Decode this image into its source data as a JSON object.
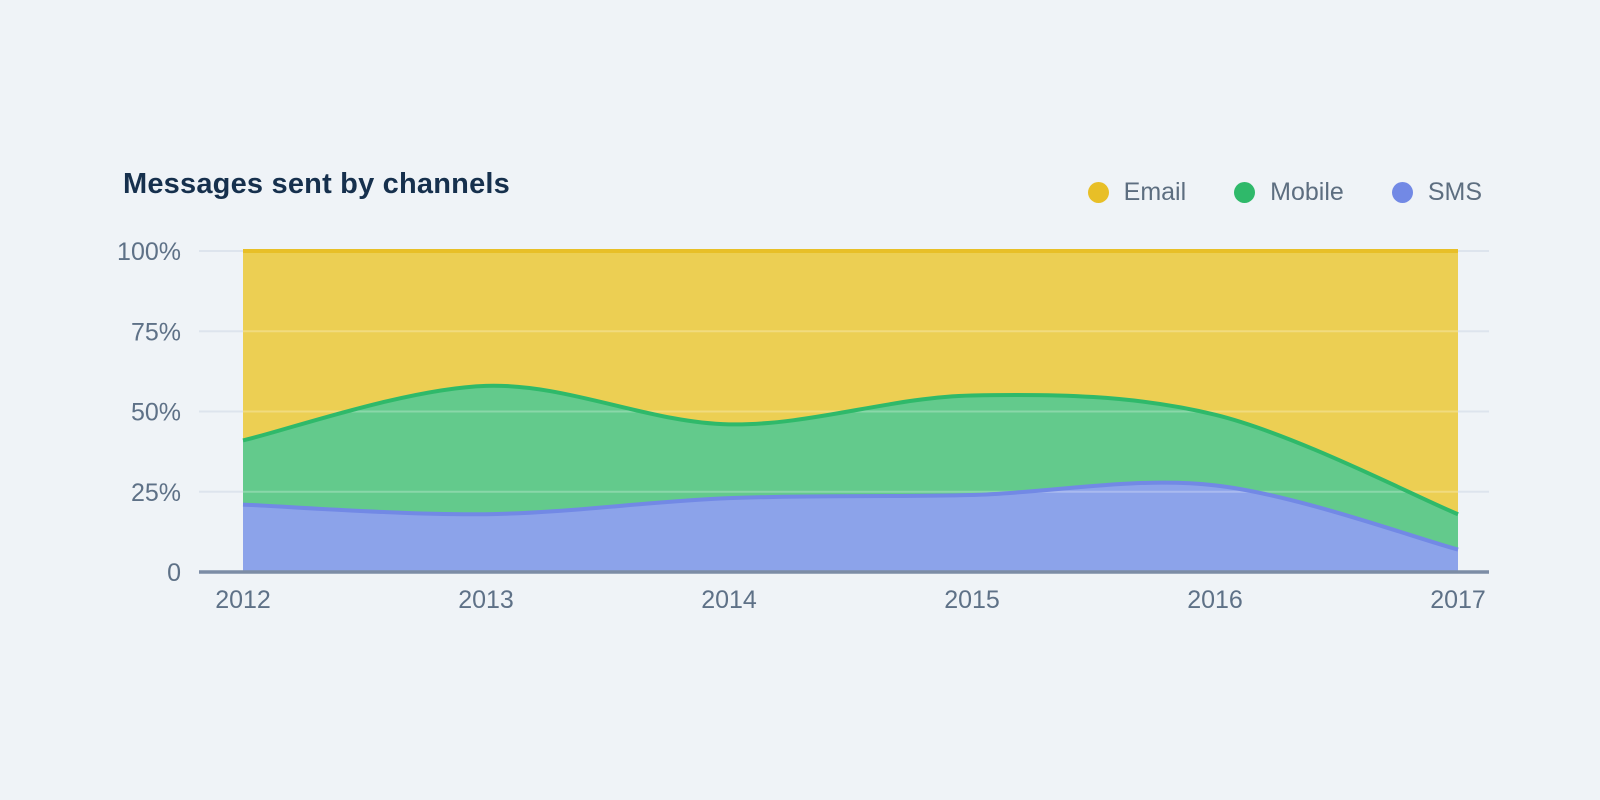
{
  "chart": {
    "title": "Messages sent by channels"
  },
  "colors": {
    "background": "#EFF3F7",
    "title_text": "#16304D",
    "axis_text": "#5E7187",
    "legend_text": "#5D6E80",
    "gridline": "#DDE4ED",
    "gridline_overlay": "rgba(255,255,255,0.25)",
    "axis_line": "#7C8CA5"
  },
  "chart_data": {
    "type": "area",
    "stacking": "percent",
    "title": "Messages sent by channels",
    "x": [
      2012,
      2013,
      2014,
      2015,
      2016,
      2017
    ],
    "series": [
      {
        "name": "SMS",
        "fill": "#8CA3EA",
        "line": "#7289E5",
        "values": [
          21,
          18,
          23,
          24,
          27,
          7
        ]
      },
      {
        "name": "Mobile",
        "fill": "#63CA8C",
        "line": "#2FB96A",
        "values": [
          20,
          40,
          23,
          31,
          22,
          11
        ]
      },
      {
        "name": "Email",
        "fill": "#ECCF53",
        "line": "#E8BF27",
        "values": [
          59,
          42,
          54,
          45,
          51,
          82
        ]
      }
    ],
    "legend_order": [
      "Email",
      "Mobile",
      "SMS"
    ],
    "legend_position": "top-right",
    "grid": true,
    "smooth": true,
    "y_axis": {
      "range": [
        0,
        100
      ],
      "ticks": [
        {
          "value": 0,
          "label": "0"
        },
        {
          "value": 25,
          "label": "25%"
        },
        {
          "value": 50,
          "label": "50%"
        },
        {
          "value": 75,
          "label": "75%"
        },
        {
          "value": 100,
          "label": "100%"
        }
      ]
    },
    "x_axis": {
      "labels": [
        "2012",
        "2013",
        "2014",
        "2015",
        "2016",
        "2017"
      ]
    }
  }
}
